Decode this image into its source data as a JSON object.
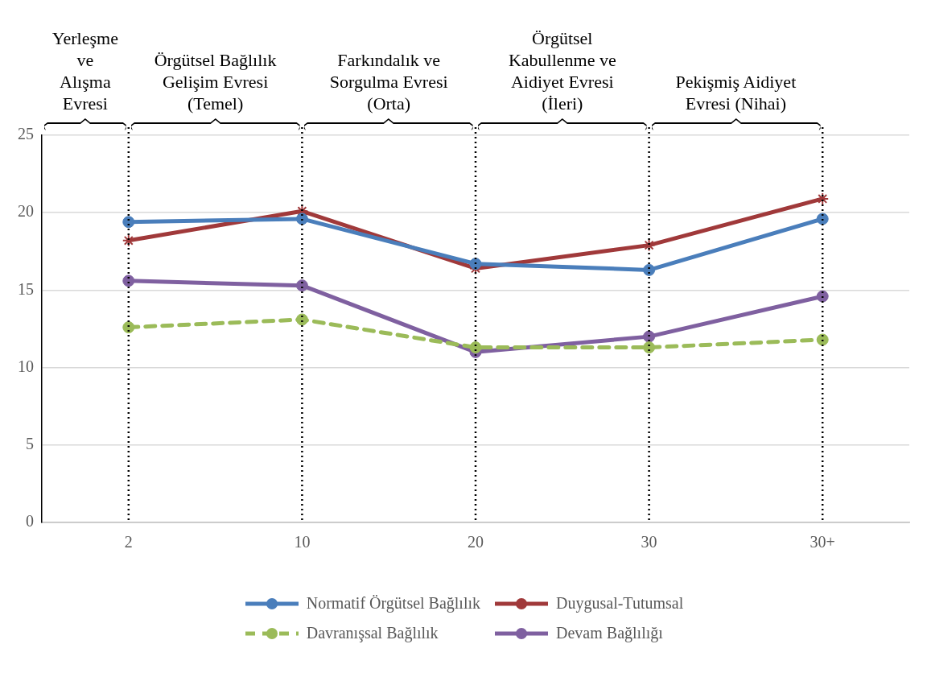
{
  "chart_data": {
    "type": "line",
    "categories": [
      "2",
      "10",
      "20",
      "30",
      "30+"
    ],
    "series": [
      {
        "name": "Normatif Örgütsel Bağlılık",
        "color": "#4a7ebb",
        "marker": "circle",
        "line_style": "solid",
        "values": [
          19.4,
          19.6,
          16.7,
          16.3,
          19.6
        ]
      },
      {
        "name": "Duygusal-Tutumsal",
        "color": "#a0393a",
        "marker": "cross",
        "line_style": "solid",
        "values": [
          18.2,
          20.1,
          16.4,
          17.9,
          20.9
        ]
      },
      {
        "name": "Davranışsal Bağlılık",
        "color": "#9bbb59",
        "marker": "circle",
        "line_style": "dashed",
        "values": [
          12.6,
          13.1,
          11.3,
          11.3,
          11.8
        ]
      },
      {
        "name": "Devam Bağlılığı",
        "color": "#7f60a0",
        "marker": "circle",
        "line_style": "solid",
        "values": [
          15.6,
          15.3,
          11.0,
          12.0,
          14.6
        ]
      }
    ],
    "ylim": [
      0,
      25
    ],
    "yticks": [
      0,
      5,
      10,
      15,
      20,
      25
    ],
    "grid": "y",
    "legend": "bottom",
    "ref_lines": [
      {
        "axis": "x",
        "value": "2",
        "color": "#000000",
        "line_style": "dotted"
      },
      {
        "axis": "x",
        "value": "10",
        "color": "#000000",
        "line_style": "dotted"
      },
      {
        "axis": "x",
        "value": "20",
        "color": "#000000",
        "line_style": "dotted"
      },
      {
        "axis": "x",
        "value": "30",
        "color": "#000000",
        "line_style": "dotted"
      },
      {
        "axis": "x",
        "value": "30+",
        "color": "#000000",
        "line_style": "dotted"
      }
    ],
    "annotations": [
      "Yerleşme ve Alışma Evresi",
      "Örgütsel Bağlılık Gelişim Evresi (Temel)",
      "Farkındalık ve Sorgulma Evresi (Orta)",
      "Örgütsel Kabullenme ve Aidiyet Evresi (İleri)",
      "Pekişmiş Aidiyet Evresi (Nihai)"
    ]
  }
}
